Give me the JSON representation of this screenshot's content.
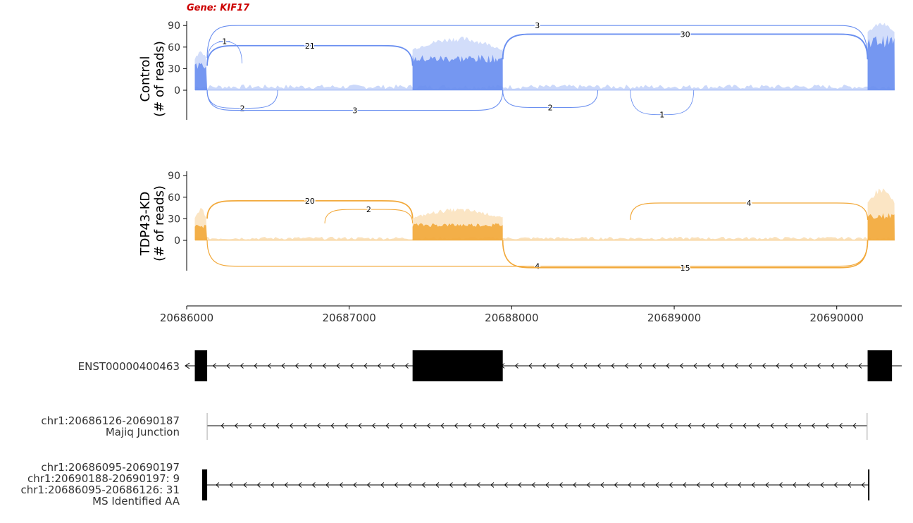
{
  "colors": {
    "control": "#6a8ff0",
    "tdp43": "#f2a93b",
    "gene_title": "#cc0000",
    "exon": "#000000"
  },
  "chart_data": {
    "type": "sashimi",
    "gene_label": "Gene: KIF17",
    "x_axis": {
      "range": [
        20686000,
        20690400
      ],
      "ticks": [
        20686000,
        20687000,
        20688000,
        20689000,
        20690000
      ],
      "tick_labels": [
        "20686000",
        "20687000",
        "20688000",
        "20689000",
        "20690000"
      ]
    },
    "panels": [
      {
        "name": "Control",
        "ylabel": [
          "Control",
          "(# of reads)"
        ],
        "ylim": [
          -45,
          100
        ],
        "y_ticks": [
          0,
          30,
          60,
          90
        ],
        "y_tick_labels": [
          "0",
          "30",
          "60",
          "90"
        ],
        "coverage": [
          {
            "start": 20686050,
            "end": 20686126,
            "height": 35,
            "max": 55
          },
          {
            "start": 20687390,
            "end": 20687945,
            "height": 45,
            "max": 75
          },
          {
            "start": 20690190,
            "end": 20690400,
            "height": 70,
            "max": 95
          }
        ],
        "low_coverage_max": 8,
        "junctions": [
          {
            "start": 20686126,
            "end": 20687390,
            "count": "21",
            "side": "above",
            "height": 62
          },
          {
            "start": 20687945,
            "end": 20690190,
            "count": "30",
            "side": "above",
            "height": 78
          },
          {
            "start": 20686126,
            "end": 20690190,
            "count": "3",
            "side": "above",
            "height": 90
          },
          {
            "start": 20686126,
            "end": 20686340,
            "count": "1",
            "side": "above",
            "height": 68
          },
          {
            "start": 20686126,
            "end": 20686560,
            "count": "2",
            "side": "below",
            "height": -25
          },
          {
            "start": 20686126,
            "end": 20687945,
            "count": "3",
            "side": "below",
            "height": -28
          },
          {
            "start": 20687945,
            "end": 20688530,
            "count": "2",
            "side": "below",
            "height": -24
          },
          {
            "start": 20688730,
            "end": 20689120,
            "count": "1",
            "side": "below",
            "height": -34
          }
        ]
      },
      {
        "name": "TDP43-KD",
        "ylabel": [
          "TDP43-KD",
          "(# of reads)"
        ],
        "ylim": [
          -45,
          100
        ],
        "y_ticks": [
          0,
          30,
          60,
          90
        ],
        "y_tick_labels": [
          "0",
          "30",
          "60",
          "90"
        ],
        "coverage": [
          {
            "start": 20686050,
            "end": 20686126,
            "height": 20,
            "max": 45
          },
          {
            "start": 20687390,
            "end": 20687945,
            "height": 22,
            "max": 45
          },
          {
            "start": 20690190,
            "end": 20690400,
            "height": 35,
            "max": 75
          }
        ],
        "low_coverage_max": 5,
        "junctions": [
          {
            "start": 20686126,
            "end": 20687390,
            "count": "20",
            "side": "above",
            "height": 55
          },
          {
            "start": 20686850,
            "end": 20687390,
            "count": "2",
            "side": "above",
            "height": 43
          },
          {
            "start": 20688730,
            "end": 20690190,
            "count": "4",
            "side": "above",
            "height": 52
          },
          {
            "start": 20686126,
            "end": 20690190,
            "count": "4",
            "side": "below",
            "height": -36
          },
          {
            "start": 20687945,
            "end": 20690190,
            "count": "15",
            "side": "below",
            "height": -38
          }
        ]
      }
    ],
    "annotation_tracks": [
      {
        "label": [
          "ENST00000400463"
        ],
        "intron": [
          20686050,
          20690400
        ],
        "exons": [
          [
            20686050,
            20686126
          ],
          [
            20687390,
            20687945
          ],
          [
            20690190,
            20690340
          ]
        ],
        "arrow_extends_past_edges": true
      },
      {
        "label": [
          "chr1:20686126-20690187",
          "Majiq Junction"
        ],
        "intron": [
          20686126,
          20690187
        ],
        "exons": [],
        "thin_ends": true
      },
      {
        "label": [
          "chr1:20686095-20690197",
          "chr1:20690188-20690197: 9",
          "chr1:20686095-20686126: 31",
          "MS Identified AA"
        ],
        "intron": [
          20686095,
          20690197
        ],
        "exons": [
          [
            20686095,
            20686126
          ]
        ],
        "end_bar": 20690197
      }
    ]
  }
}
